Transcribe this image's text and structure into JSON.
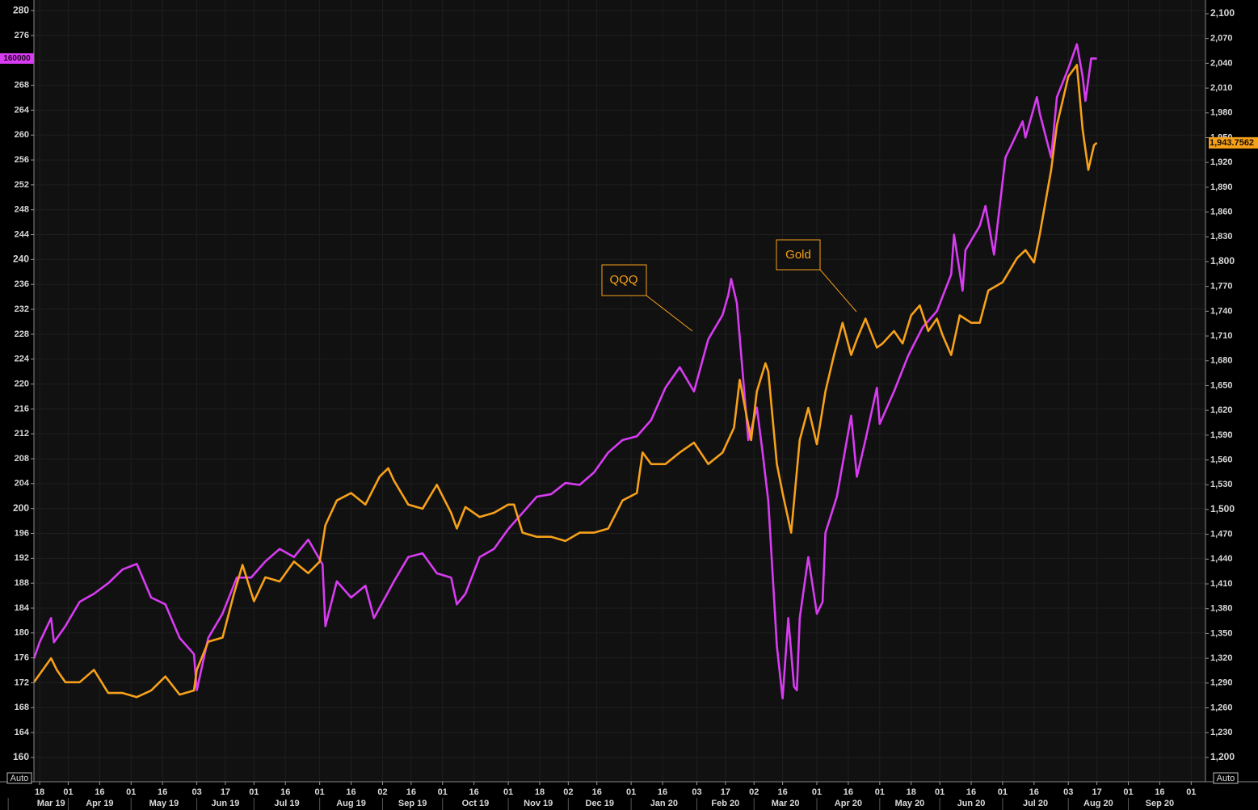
{
  "chart_data": {
    "type": "line",
    "xlim": [
      "2019-03-14",
      "2020-10-08"
    ],
    "xticks": [
      {
        "value": "2019-03-18",
        "label": "18"
      },
      {
        "value": "2019-04-01",
        "label": "01"
      },
      {
        "value": "2019-04-16",
        "label": "16"
      },
      {
        "value": "2019-05-01",
        "label": "01"
      },
      {
        "value": "2019-05-16",
        "label": "16"
      },
      {
        "value": "2019-06-03",
        "label": "03"
      },
      {
        "value": "2019-06-17",
        "label": "17"
      },
      {
        "value": "2019-07-01",
        "label": "01"
      },
      {
        "value": "2019-07-16",
        "label": "16"
      },
      {
        "value": "2019-08-01",
        "label": "01"
      },
      {
        "value": "2019-08-16",
        "label": "16"
      },
      {
        "value": "2019-09-02",
        "label": "02"
      },
      {
        "value": "2019-09-16",
        "label": "16"
      },
      {
        "value": "2019-10-01",
        "label": "01"
      },
      {
        "value": "2019-10-16",
        "label": "16"
      },
      {
        "value": "2019-11-01",
        "label": "01"
      },
      {
        "value": "2019-11-18",
        "label": "18"
      },
      {
        "value": "2019-12-02",
        "label": "02"
      },
      {
        "value": "2019-12-16",
        "label": "16"
      },
      {
        "value": "2020-01-01",
        "label": "01"
      },
      {
        "value": "2020-01-16",
        "label": "16"
      },
      {
        "value": "2020-02-03",
        "label": "03"
      },
      {
        "value": "2020-02-17",
        "label": "17"
      },
      {
        "value": "2020-03-02",
        "label": "02"
      },
      {
        "value": "2020-03-16",
        "label": "16"
      },
      {
        "value": "2020-04-01",
        "label": "01"
      },
      {
        "value": "2020-04-16",
        "label": "16"
      },
      {
        "value": "2020-05-01",
        "label": "01"
      },
      {
        "value": "2020-05-18",
        "label": "18"
      },
      {
        "value": "2020-06-01",
        "label": "01"
      },
      {
        "value": "2020-06-16",
        "label": "16"
      },
      {
        "value": "2020-07-01",
        "label": "01"
      },
      {
        "value": "2020-07-16",
        "label": "16"
      },
      {
        "value": "2020-08-03",
        "label": "03"
      },
      {
        "value": "2020-08-17",
        "label": "17"
      },
      {
        "value": "2020-09-01",
        "label": "01"
      },
      {
        "value": "2020-09-16",
        "label": "16"
      },
      {
        "value": "2020-10-01",
        "label": "01"
      }
    ],
    "x_months": [
      {
        "value": "2019-03",
        "label": "Mar 19"
      },
      {
        "value": "2019-04",
        "label": "Apr 19"
      },
      {
        "value": "2019-05",
        "label": "May 19"
      },
      {
        "value": "2019-06",
        "label": "Jun 19"
      },
      {
        "value": "2019-07",
        "label": "Jul 19"
      },
      {
        "value": "2019-08",
        "label": "Aug 19"
      },
      {
        "value": "2019-09",
        "label": "Sep 19"
      },
      {
        "value": "2019-10",
        "label": "Oct 19"
      },
      {
        "value": "2019-11",
        "label": "Nov 19"
      },
      {
        "value": "2019-12",
        "label": "Dec 19"
      },
      {
        "value": "2020-01",
        "label": "Jan 20"
      },
      {
        "value": "2020-02",
        "label": "Feb 20"
      },
      {
        "value": "2020-03",
        "label": "Mar 20"
      },
      {
        "value": "2020-04",
        "label": "Apr 20"
      },
      {
        "value": "2020-05",
        "label": "May 20"
      },
      {
        "value": "2020-06",
        "label": "Jun 20"
      },
      {
        "value": "2020-07",
        "label": "Jul 20"
      },
      {
        "value": "2020-08",
        "label": "Aug 20"
      },
      {
        "value": "2020-09",
        "label": "Sep 20"
      }
    ],
    "ylim": [
      156.1,
      281.7
    ],
    "yticks": [
      160,
      164,
      168,
      172,
      176,
      180,
      184,
      188,
      192,
      196,
      200,
      204,
      208,
      212,
      216,
      220,
      224,
      228,
      232,
      236,
      240,
      244,
      248,
      252,
      256,
      260,
      264,
      268,
      272,
      276,
      280
    ],
    "y2lim": [
      1170.6,
      2116.6
    ],
    "y2ticks": [
      {
        "value": 1200,
        "label": "1,200"
      },
      {
        "value": 1230,
        "label": "1,230"
      },
      {
        "value": 1260,
        "label": "1,260"
      },
      {
        "value": 1290,
        "label": "1,290"
      },
      {
        "value": 1320,
        "label": "1,320"
      },
      {
        "value": 1350,
        "label": "1,350"
      },
      {
        "value": 1380,
        "label": "1,380"
      },
      {
        "value": 1410,
        "label": "1,410"
      },
      {
        "value": 1440,
        "label": "1,440"
      },
      {
        "value": 1470,
        "label": "1,470"
      },
      {
        "value": 1500,
        "label": "1,500"
      },
      {
        "value": 1530,
        "label": "1,530"
      },
      {
        "value": 1560,
        "label": "1,560"
      },
      {
        "value": 1590,
        "label": "1,590"
      },
      {
        "value": 1620,
        "label": "1,620"
      },
      {
        "value": 1650,
        "label": "1,650"
      },
      {
        "value": 1680,
        "label": "1,680"
      },
      {
        "value": 1710,
        "label": "1,710"
      },
      {
        "value": 1740,
        "label": "1,740"
      },
      {
        "value": 1770,
        "label": "1,770"
      },
      {
        "value": 1800,
        "label": "1,800"
      },
      {
        "value": 1830,
        "label": "1,830"
      },
      {
        "value": 1860,
        "label": "1,860"
      },
      {
        "value": 1890,
        "label": "1,890"
      },
      {
        "value": 1920,
        "label": "1,920"
      },
      {
        "value": 1950,
        "label": "1,950"
      },
      {
        "value": 1980,
        "label": "1,980"
      },
      {
        "value": 2010,
        "label": "2,010"
      },
      {
        "value": 2040,
        "label": "2,040"
      },
      {
        "value": 2070,
        "label": "2,070"
      },
      {
        "value": 2100,
        "label": "2,100"
      }
    ],
    "grid": true,
    "left_axis_tag": "160000",
    "scale_buttons": [
      "Auto",
      "Auto"
    ],
    "series": [
      {
        "name": "QQQ",
        "color": "#d83cf2",
        "axis": "y",
        "x": [
          "2019-03-14",
          "2019-03-18",
          "2019-03-22",
          "2019-03-25",
          "2019-03-29",
          "2019-04-05",
          "2019-04-12",
          "2019-04-19",
          "2019-04-26",
          "2019-05-03",
          "2019-05-10",
          "2019-05-17",
          "2019-05-24",
          "2019-05-31",
          "2019-06-03",
          "2019-06-07",
          "2019-06-14",
          "2019-06-21",
          "2019-06-28",
          "2019-07-05",
          "2019-07-12",
          "2019-07-19",
          "2019-07-26",
          "2019-08-02",
          "2019-08-05",
          "2019-08-09",
          "2019-08-16",
          "2019-08-23",
          "2019-08-28",
          "2019-09-06",
          "2019-09-13",
          "2019-09-20",
          "2019-09-27",
          "2019-10-04",
          "2019-10-08",
          "2019-10-11",
          "2019-10-18",
          "2019-10-25",
          "2019-11-01",
          "2019-11-08",
          "2019-11-15",
          "2019-11-22",
          "2019-11-29",
          "2019-12-06",
          "2019-12-13",
          "2019-12-20",
          "2019-12-27",
          "2020-01-03",
          "2020-01-10",
          "2020-01-17",
          "2020-01-24",
          "2020-01-31",
          "2020-02-07",
          "2020-02-14",
          "2020-02-18",
          "2020-02-19",
          "2020-02-21",
          "2020-02-25",
          "2020-02-27",
          "2020-03-03",
          "2020-03-05",
          "2020-03-09",
          "2020-03-12",
          "2020-03-16",
          "2020-03-18",
          "2020-03-20",
          "2020-03-23",
          "2020-03-24",
          "2020-03-27",
          "2020-04-01",
          "2020-04-03",
          "2020-04-06",
          "2020-04-10",
          "2020-04-17",
          "2020-04-21",
          "2020-04-24",
          "2020-04-30",
          "2020-05-01",
          "2020-05-08",
          "2020-05-15",
          "2020-05-22",
          "2020-05-29",
          "2020-06-05",
          "2020-06-08",
          "2020-06-11",
          "2020-06-12",
          "2020-06-19",
          "2020-06-23",
          "2020-06-26",
          "2020-07-02",
          "2020-07-06",
          "2020-07-10",
          "2020-07-13",
          "2020-07-17",
          "2020-07-20",
          "2020-07-24",
          "2020-07-28",
          "2020-08-03",
          "2020-08-06",
          "2020-08-10",
          "2020-08-11",
          "2020-08-13",
          "2020-08-17"
        ],
        "values": [
          175.9,
          178.5,
          182.4,
          178.5,
          181.1,
          185.0,
          186.3,
          188.0,
          190.2,
          191.1,
          185.7,
          184.6,
          179.2,
          176.6,
          170.8,
          179.2,
          183.1,
          188.9,
          188.9,
          191.5,
          193.5,
          192.2,
          195.0,
          191.0,
          181.1,
          188.3,
          185.7,
          187.6,
          182.4,
          188.3,
          192.2,
          192.8,
          189.6,
          188.9,
          184.6,
          186.3,
          192.2,
          193.5,
          196.7,
          199.3,
          201.9,
          202.3,
          204.1,
          203.8,
          205.8,
          209.0,
          211.0,
          211.6,
          214.2,
          219.4,
          222.7,
          218.8,
          227.2,
          231.1,
          234.3,
          236.9,
          233.0,
          222.0,
          211.0,
          216.2,
          209.0,
          201.2,
          177.9,
          169.5,
          182.4,
          171.4,
          170.8,
          182.4,
          192.2,
          183.1,
          185.0,
          196.1,
          201.9,
          214.9,
          205.1,
          211.0,
          219.4,
          213.6,
          218.8,
          224.6,
          229.1,
          231.7,
          237.6,
          244.0,
          235.0,
          241.5,
          245.4,
          248.6,
          240.8,
          256.4,
          258.3,
          262.2,
          259.6,
          266.1,
          263.5,
          256.4,
          266.1,
          270.7,
          274.6,
          269.4,
          265.5,
          272.3,
          272.3
        ]
      },
      {
        "name": "Gold",
        "color": "#f7a11a",
        "axis": "y2",
        "x": [
          "2019-03-14",
          "2019-03-22",
          "2019-03-26",
          "2019-03-29",
          "2019-04-05",
          "2019-04-12",
          "2019-04-19",
          "2019-04-26",
          "2019-05-03",
          "2019-05-10",
          "2019-05-17",
          "2019-05-24",
          "2019-05-31",
          "2019-06-03",
          "2019-06-07",
          "2019-06-14",
          "2019-06-20",
          "2019-06-25",
          "2019-07-01",
          "2019-07-05",
          "2019-07-12",
          "2019-07-19",
          "2019-07-26",
          "2019-08-01",
          "2019-08-05",
          "2019-08-09",
          "2019-08-16",
          "2019-08-23",
          "2019-08-30",
          "2019-09-04",
          "2019-09-06",
          "2019-09-13",
          "2019-09-20",
          "2019-09-27",
          "2019-10-04",
          "2019-10-08",
          "2019-10-11",
          "2019-10-18",
          "2019-10-25",
          "2019-11-01",
          "2019-11-05",
          "2019-11-08",
          "2019-11-15",
          "2019-11-22",
          "2019-11-29",
          "2019-12-06",
          "2019-12-13",
          "2019-12-20",
          "2019-12-27",
          "2020-01-03",
          "2020-01-07",
          "2020-01-10",
          "2020-01-17",
          "2020-01-24",
          "2020-01-31",
          "2020-02-07",
          "2020-02-14",
          "2020-02-20",
          "2020-02-24",
          "2020-02-28",
          "2020-03-03",
          "2020-03-06",
          "2020-03-09",
          "2020-03-12",
          "2020-03-16",
          "2020-03-19",
          "2020-03-24",
          "2020-03-27",
          "2020-04-01",
          "2020-04-06",
          "2020-04-09",
          "2020-04-14",
          "2020-04-17",
          "2020-04-21",
          "2020-04-24",
          "2020-04-30",
          "2020-05-04",
          "2020-05-08",
          "2020-05-13",
          "2020-05-18",
          "2020-05-21",
          "2020-05-26",
          "2020-05-29",
          "2020-06-02",
          "2020-06-05",
          "2020-06-10",
          "2020-06-16",
          "2020-06-19",
          "2020-06-24",
          "2020-07-01",
          "2020-07-08",
          "2020-07-13",
          "2020-07-16",
          "2020-07-20",
          "2020-07-24",
          "2020-07-28",
          "2020-08-03",
          "2020-08-06",
          "2020-08-10",
          "2020-08-12",
          "2020-08-14",
          "2020-08-17"
        ],
        "values": [
          1291,
          1320,
          1306,
          1291,
          1291,
          1306,
          1278,
          1278,
          1273,
          1281,
          1298,
          1276,
          1281,
          1306,
          1340,
          1345,
          1398,
          1433,
          1389,
          1418,
          1413,
          1437,
          1423,
          1437,
          1481,
          1511,
          1520,
          1506,
          1540,
          1550,
          1535,
          1506,
          1501,
          1530,
          1496,
          1477,
          1503,
          1491,
          1496,
          1506,
          1506,
          1472,
          1467,
          1467,
          1462,
          1472,
          1472,
          1477,
          1511,
          1520,
          1569,
          1555,
          1555,
          1569,
          1581,
          1555,
          1569,
          1599,
          1657,
          1584,
          1643,
          1677,
          1667,
          1555,
          1520,
          1472,
          1584,
          1623,
          1579,
          1643,
          1687,
          1726,
          1687,
          1706,
          1731,
          1696,
          1701,
          1716,
          1701,
          1735,
          1747,
          1716,
          1731,
          1711,
          1687,
          1735,
          1726,
          1726,
          1765,
          1775,
          1804,
          1814,
          1799,
          1833,
          1911,
          1965,
          2024,
          2038,
          1960,
          1911,
          1941,
          1943.7562
        ],
        "value_labels": [
          null,
          null,
          null,
          null,
          null,
          null,
          null,
          null,
          null,
          null,
          null,
          null,
          null,
          null,
          null,
          null,
          null,
          null,
          null,
          null,
          null,
          null,
          null,
          null,
          null,
          null,
          null,
          null,
          null,
          null,
          null,
          null,
          null,
          null,
          null,
          null,
          null,
          null,
          null,
          null,
          null,
          null,
          null,
          null,
          null,
          null,
          null,
          null,
          null,
          null,
          null,
          null,
          null,
          null,
          null,
          null,
          null,
          null,
          null,
          null,
          null,
          null,
          null,
          null,
          null,
          null,
          null,
          null,
          null,
          null,
          null,
          null,
          null,
          null,
          null,
          null,
          null,
          null,
          null,
          null,
          null,
          null,
          null,
          null,
          null,
          null,
          null,
          null,
          null,
          null,
          null,
          null,
          null,
          null,
          null,
          null,
          null,
          null,
          null,
          null,
          null,
          "1,943.7562"
        ]
      }
    ]
  }
}
